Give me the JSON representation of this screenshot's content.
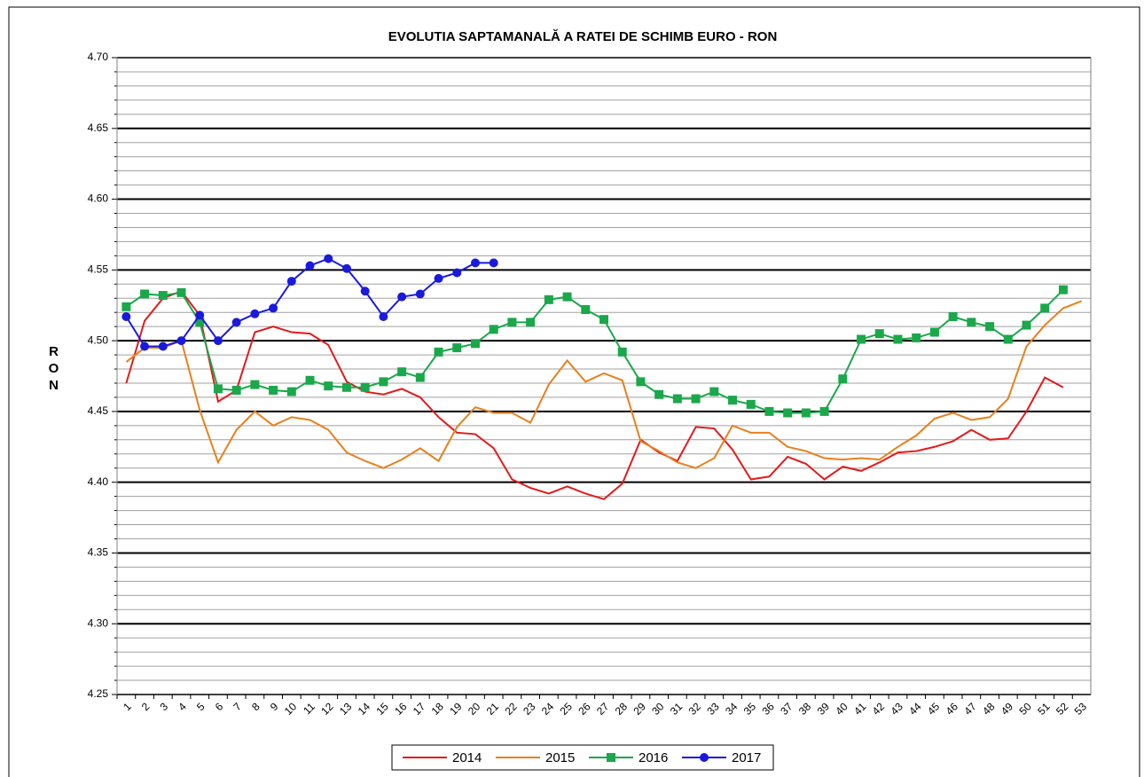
{
  "chart_data": {
    "type": "line",
    "title": "EVOLUTIA SAPTAMANALĂ A RATEI DE SCHIMB EURO - RON",
    "y_label": "RON",
    "categories": [
      "1",
      "2",
      "3",
      "4",
      "5",
      "6",
      "7",
      "8",
      "9",
      "10",
      "11",
      "12",
      "13",
      "14",
      "15",
      "16",
      "17",
      "18",
      "19",
      "20",
      "21",
      "22",
      "23",
      "24",
      "25",
      "26",
      "27",
      "28",
      "29",
      "30",
      "31",
      "32",
      "33",
      "34",
      "35",
      "36",
      "37",
      "38",
      "39",
      "40",
      "41",
      "42",
      "43",
      "44",
      "45",
      "46",
      "47",
      "48",
      "49",
      "50",
      "51",
      "52",
      "53"
    ],
    "series": [
      {
        "name": "2014",
        "color": "#e31a1c",
        "marker": "none",
        "values": [
          4.47,
          4.514,
          4.53,
          4.535,
          4.518,
          4.457,
          4.465,
          4.506,
          4.51,
          4.506,
          4.505,
          4.497,
          4.471,
          4.464,
          4.462,
          4.466,
          4.46,
          4.446,
          4.435,
          4.434,
          4.424,
          4.402,
          4.396,
          4.392,
          4.397,
          4.392,
          4.388,
          4.399,
          4.43,
          4.421,
          4.415,
          4.439,
          4.438,
          4.423,
          4.402,
          4.404,
          4.418,
          4.413,
          4.402,
          4.411,
          4.408,
          4.414,
          4.421,
          4.422,
          4.425,
          4.429,
          4.437,
          4.43,
          4.431,
          4.45,
          4.474,
          4.467,
          null
        ]
      },
      {
        "name": "2015",
        "color": "#e8801c",
        "marker": "none",
        "values": [
          4.485,
          4.495,
          4.495,
          4.5,
          4.451,
          4.414,
          4.437,
          4.45,
          4.44,
          4.446,
          4.444,
          4.437,
          4.421,
          4.415,
          4.41,
          4.416,
          4.424,
          4.415,
          4.439,
          4.453,
          4.449,
          4.449,
          4.442,
          4.469,
          4.486,
          4.471,
          4.477,
          4.472,
          4.429,
          4.422,
          4.414,
          4.41,
          4.417,
          4.44,
          4.435,
          4.435,
          4.425,
          4.422,
          4.417,
          4.416,
          4.417,
          4.416,
          4.425,
          4.433,
          4.445,
          4.449,
          4.444,
          4.446,
          4.459,
          4.496,
          4.511,
          4.523,
          4.528
        ]
      },
      {
        "name": "2016",
        "color": "#1aa84a",
        "marker": "square",
        "values": [
          4.524,
          4.533,
          4.532,
          4.534,
          4.513,
          4.466,
          4.465,
          4.469,
          4.465,
          4.464,
          4.472,
          4.468,
          4.467,
          4.467,
          4.471,
          4.478,
          4.474,
          4.492,
          4.495,
          4.498,
          4.508,
          4.513,
          4.513,
          4.529,
          4.531,
          4.522,
          4.515,
          4.492,
          4.471,
          4.462,
          4.459,
          4.459,
          4.464,
          4.458,
          4.455,
          4.45,
          4.449,
          4.449,
          4.45,
          4.473,
          4.501,
          4.505,
          4.501,
          4.502,
          4.506,
          4.517,
          4.513,
          4.51,
          4.501,
          4.511,
          4.523,
          4.536,
          null
        ]
      },
      {
        "name": "2017",
        "color": "#1a1adc",
        "marker": "circle",
        "values": [
          4.517,
          4.496,
          4.496,
          4.5,
          4.518,
          4.5,
          4.513,
          4.519,
          4.523,
          4.542,
          4.553,
          4.558,
          4.551,
          4.535,
          4.517,
          4.531,
          4.533,
          4.544,
          4.548,
          4.555,
          4.555,
          null,
          null,
          null,
          null,
          null,
          null,
          null,
          null,
          null,
          null,
          null,
          null,
          null,
          null,
          null,
          null,
          null,
          null,
          null,
          null,
          null,
          null,
          null,
          null,
          null,
          null,
          null,
          null,
          null,
          null,
          null,
          null
        ]
      }
    ],
    "ylim": [
      4.25,
      4.7
    ],
    "yticks": [
      {
        "value": 4.25,
        "label": "4.25"
      },
      {
        "value": 4.3,
        "label": "4.30"
      },
      {
        "value": 4.35,
        "label": "4.35"
      },
      {
        "value": 4.4,
        "label": "4.40"
      },
      {
        "value": 4.45,
        "label": "4.45"
      },
      {
        "value": 4.5,
        "label": "4.50"
      },
      {
        "value": 4.55,
        "label": "4.55"
      },
      {
        "value": 4.6,
        "label": "4.60"
      },
      {
        "value": 4.65,
        "label": "4.65"
      },
      {
        "value": 4.7,
        "label": "4.70"
      }
    ],
    "yminorticks": [
      4.26,
      4.27,
      4.28,
      4.29,
      4.31,
      4.32,
      4.33,
      4.34,
      4.36,
      4.37,
      4.38,
      4.39,
      4.41,
      4.42,
      4.43,
      4.44,
      4.46,
      4.47,
      4.48,
      4.49,
      4.51,
      4.52,
      4.53,
      4.54,
      4.56,
      4.57,
      4.58,
      4.59,
      4.61,
      4.62,
      4.63,
      4.64,
      4.66,
      4.67,
      4.68,
      4.69
    ],
    "grid": true,
    "legend": "bottom"
  }
}
